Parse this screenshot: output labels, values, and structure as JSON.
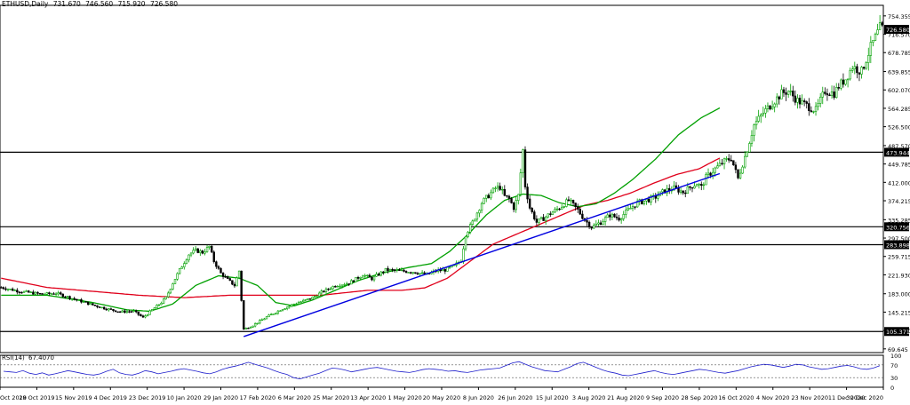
{
  "header": {
    "symbol": "ETHUSD,Daily",
    "open": "731.670",
    "high": "746.560",
    "low": "715.920",
    "close": "726.580"
  },
  "rsi_header": {
    "label": "RSI(14)",
    "value": "67.4070"
  },
  "colors": {
    "up_candle": "#00a000",
    "down_candle": "#000000",
    "ma_fast": "#00a000",
    "ma_slow": "#e0001b",
    "trendline": "#0000e0",
    "level": "#000000",
    "rsi": "#1e1ecc",
    "price_label_bg": "#000000"
  },
  "chart_data": {
    "type": "candlestick",
    "title": "ETHUSD,Daily",
    "ylim": [
      62,
      776
    ],
    "price_ticks": [
      "754.355",
      "716.570",
      "678.785",
      "639.855",
      "602.070",
      "564.285",
      "526.500",
      "487.570",
      "449.785",
      "412.000",
      "374.215",
      "335.285",
      "297.500",
      "259.715",
      "221.930",
      "183.000",
      "145.215",
      "107.430",
      "69.645"
    ],
    "x_tick_labels": [
      "10 Oct 2019",
      "28 Oct 2019",
      "15 Nov 2019",
      "4 Dec 2019",
      "23 Dec 2019",
      "10 Jan 2020",
      "29 Jan 2020",
      "17 Feb 2020",
      "6 Mar 2020",
      "25 Mar 2020",
      "13 Apr 2020",
      "1 May 2020",
      "20 May 2020",
      "8 Jun 2020",
      "26 Jun 2020",
      "15 Jul 2020",
      "3 Aug 2020",
      "21 Aug 2020",
      "9 Sep 2020",
      "28 Sep 2020",
      "16 Oct 2020",
      "4 Nov 2020",
      "23 Nov 2020",
      "11 Dec 2020",
      "30 Dec 2020"
    ],
    "horizontal_levels": [
      {
        "value": 473.944,
        "label": "473.944"
      },
      {
        "value": 320.756,
        "label": "320.756"
      },
      {
        "value": 283.898,
        "label": "283.898"
      },
      {
        "value": 105.371,
        "label": "105.371"
      }
    ],
    "current_price": {
      "value": 726.58,
      "label": "726.580"
    },
    "close_path": [
      [
        0,
        196
      ],
      [
        8,
        188
      ],
      [
        18,
        182
      ],
      [
        24,
        184
      ],
      [
        30,
        175
      ],
      [
        40,
        160
      ],
      [
        46,
        152
      ],
      [
        52,
        146
      ],
      [
        58,
        147
      ],
      [
        62,
        134
      ],
      [
        66,
        150
      ],
      [
        70,
        165
      ],
      [
        72,
        175
      ],
      [
        75,
        205
      ],
      [
        78,
        232
      ],
      [
        82,
        264
      ],
      [
        85,
        272
      ],
      [
        88,
        268
      ],
      [
        91,
        280
      ],
      [
        93,
        250
      ],
      [
        96,
        225
      ],
      [
        99,
        212
      ],
      [
        102,
        200
      ],
      [
        104,
        230
      ],
      [
        106,
        110
      ],
      [
        110,
        118
      ],
      [
        116,
        135
      ],
      [
        122,
        150
      ],
      [
        128,
        162
      ],
      [
        132,
        168
      ],
      [
        136,
        175
      ],
      [
        140,
        186
      ],
      [
        146,
        200
      ],
      [
        152,
        205
      ],
      [
        158,
        222
      ],
      [
        162,
        214
      ],
      [
        168,
        232
      ],
      [
        174,
        230
      ],
      [
        180,
        228
      ],
      [
        186,
        222
      ],
      [
        190,
        230
      ],
      [
        194,
        232
      ],
      [
        198,
        240
      ],
      [
        201,
        252
      ],
      [
        203,
        305
      ],
      [
        206,
        330
      ],
      [
        210,
        370
      ],
      [
        212,
        380
      ],
      [
        216,
        400
      ],
      [
        218,
        402
      ],
      [
        220,
        383
      ],
      [
        222,
        378
      ],
      [
        224,
        360
      ],
      [
        226,
        385
      ],
      [
        228,
        478
      ],
      [
        229,
        405
      ],
      [
        231,
        360
      ],
      [
        234,
        330
      ],
      [
        237,
        338
      ],
      [
        240,
        348
      ],
      [
        244,
        360
      ],
      [
        248,
        375
      ],
      [
        252,
        355
      ],
      [
        255,
        335
      ],
      [
        258,
        320
      ],
      [
        262,
        330
      ],
      [
        266,
        345
      ],
      [
        270,
        338
      ],
      [
        274,
        355
      ],
      [
        278,
        370
      ],
      [
        282,
        375
      ],
      [
        286,
        382
      ],
      [
        290,
        395
      ],
      [
        294,
        400
      ],
      [
        298,
        392
      ],
      [
        302,
        405
      ],
      [
        304,
        410
      ],
      [
        306,
        402
      ],
      [
        308,
        422
      ],
      [
        312,
        440
      ],
      [
        316,
        455
      ],
      [
        319,
        462
      ],
      [
        322,
        420
      ],
      [
        326,
        480
      ],
      [
        329,
        530
      ],
      [
        333,
        555
      ],
      [
        337,
        575
      ],
      [
        341,
        595
      ],
      [
        344,
        600
      ],
      [
        348,
        580
      ],
      [
        352,
        570
      ],
      [
        356,
        560
      ],
      [
        360,
        600
      ],
      [
        364,
        595
      ],
      [
        366,
        610
      ],
      [
        369,
        625
      ],
      [
        372,
        650
      ],
      [
        376,
        640
      ],
      [
        380,
        690
      ],
      [
        384,
        730
      ],
      [
        386,
        726.58
      ]
    ],
    "ma_fast_path": [
      [
        0,
        180
      ],
      [
        20,
        180
      ],
      [
        40,
        165
      ],
      [
        55,
        150
      ],
      [
        65,
        147
      ],
      [
        75,
        162
      ],
      [
        85,
        200
      ],
      [
        95,
        220
      ],
      [
        104,
        215
      ],
      [
        112,
        200
      ],
      [
        120,
        165
      ],
      [
        128,
        158
      ],
      [
        136,
        170
      ],
      [
        146,
        190
      ],
      [
        156,
        210
      ],
      [
        166,
        225
      ],
      [
        178,
        237
      ],
      [
        188,
        245
      ],
      [
        196,
        270
      ],
      [
        204,
        305
      ],
      [
        212,
        345
      ],
      [
        220,
        375
      ],
      [
        228,
        388
      ],
      [
        236,
        385
      ],
      [
        244,
        370
      ],
      [
        252,
        362
      ],
      [
        260,
        368
      ],
      [
        268,
        390
      ],
      [
        276,
        418
      ],
      [
        286,
        460
      ],
      [
        296,
        510
      ],
      [
        306,
        545
      ],
      [
        314,
        565
      ]
    ],
    "ma_slow_path": [
      [
        0,
        215
      ],
      [
        20,
        196
      ],
      [
        40,
        188
      ],
      [
        60,
        180
      ],
      [
        80,
        175
      ],
      [
        100,
        180
      ],
      [
        120,
        180
      ],
      [
        140,
        180
      ],
      [
        160,
        190
      ],
      [
        175,
        190
      ],
      [
        185,
        195
      ],
      [
        195,
        215
      ],
      [
        205,
        250
      ],
      [
        215,
        285
      ],
      [
        225,
        305
      ],
      [
        235,
        325
      ],
      [
        245,
        345
      ],
      [
        255,
        365
      ],
      [
        265,
        375
      ],
      [
        275,
        390
      ],
      [
        285,
        410
      ],
      [
        295,
        428
      ],
      [
        305,
        440
      ],
      [
        314,
        462
      ]
    ],
    "trendline": [
      [
        106,
        95
      ],
      [
        314,
        430
      ]
    ],
    "rsi": {
      "label": "RSI(14)",
      "ylim": [
        0,
        100
      ],
      "ticks": [
        "100",
        "70",
        "30",
        "0"
      ],
      "levels": [
        70,
        30
      ],
      "values": [
        50,
        48,
        46,
        52,
        44,
        40,
        45,
        38,
        42,
        47,
        52,
        48,
        44,
        40,
        38,
        42,
        50,
        56,
        45,
        40,
        38,
        44,
        52,
        48,
        42,
        46,
        50,
        55,
        58,
        54,
        50,
        45,
        42,
        48,
        56,
        62,
        66,
        72,
        78,
        72,
        66,
        60,
        52,
        45,
        40,
        30,
        26,
        32,
        38,
        44,
        52,
        60,
        58,
        54,
        48,
        52,
        56,
        60,
        62,
        58,
        54,
        50,
        48,
        46,
        50,
        55,
        58,
        56,
        54,
        50,
        52,
        48,
        46,
        50,
        54,
        56,
        58,
        60,
        68,
        76,
        80,
        72,
        64,
        58,
        52,
        50,
        48,
        56,
        64,
        74,
        78,
        70,
        62,
        54,
        48,
        44,
        38,
        36,
        40,
        44,
        48,
        52,
        46,
        42,
        40,
        44,
        48,
        52,
        56,
        54,
        50,
        46,
        44,
        48,
        52,
        58,
        64,
        68,
        72,
        70,
        66,
        62,
        66,
        72,
        70,
        64,
        60,
        56,
        58,
        62,
        66,
        68,
        64,
        58,
        56,
        60,
        67.407
      ]
    }
  }
}
